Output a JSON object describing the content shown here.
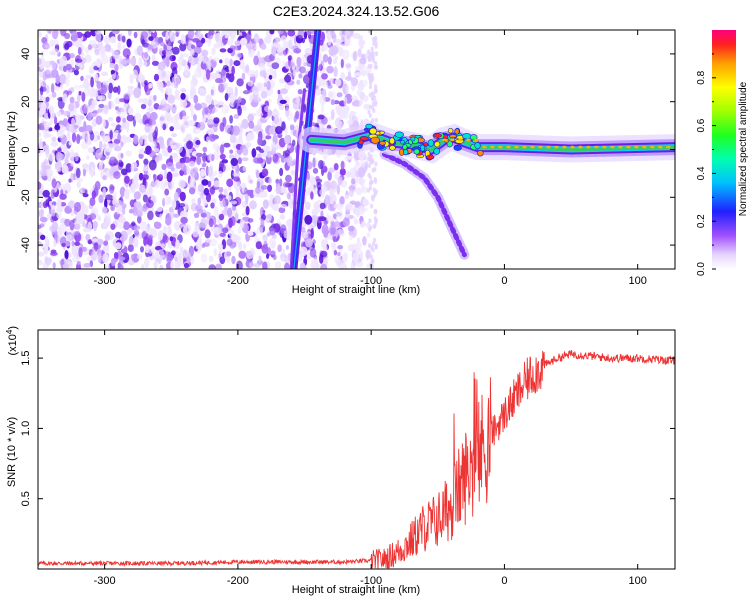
{
  "title": "C2E3.2024.324.13.52.G06",
  "top_plot": {
    "xlabel": "Height of straight line (km)",
    "ylabel": "Frequency (Hz)",
    "colorbar_label": "Normalized spectral amplitude"
  },
  "bottom_plot": {
    "xlabel": "Height of straight line (km)",
    "ylabel": "SNR (10 * v/v)",
    "multiplier": "(x10",
    "multiplier_exp": "4",
    "multiplier_close": ")"
  },
  "colors": {
    "snr_line": "#ee3333",
    "background_speckle": "#8b3cf0",
    "ridge": "#33cc66"
  },
  "chart_data": [
    {
      "type": "heatmap",
      "title": "C2E3.2024.324.13.52.G06",
      "xlabel": "Height of straight line (km)",
      "ylabel": "Frequency (Hz)",
      "xlim": [
        -350,
        128
      ],
      "ylim": [
        -50,
        50
      ],
      "x_ticks": [
        -300,
        -200,
        -100,
        0,
        100
      ],
      "y_ticks": [
        -40,
        -20,
        0,
        20,
        40
      ],
      "x_tick_labels": [
        "-300",
        "-200",
        "-100",
        "0",
        "100"
      ],
      "y_tick_labels": [
        "-40",
        "-20",
        "0",
        "20",
        "40"
      ],
      "colorbar": {
        "label": "Normalized spectral amplitude",
        "range": [
          0,
          1
        ],
        "ticks": [
          0.0,
          0.2,
          0.4,
          0.6,
          0.8
        ],
        "tick_labels": [
          "0.0",
          "0.2",
          "0.4",
          "0.6",
          "0.8"
        ]
      },
      "features": {
        "noise_region_x": [
          -350,
          -102
        ],
        "streak1_points": [
          [
            -158,
            -50
          ],
          [
            -149,
            0
          ],
          [
            -140,
            50
          ]
        ],
        "streak2_points": [
          [
            -160,
            -50
          ],
          [
            -155,
            0
          ],
          [
            -150,
            25
          ]
        ],
        "ridge_points": [
          [
            -145,
            4
          ],
          [
            -120,
            3
          ],
          [
            -100,
            6
          ],
          [
            -85,
            3
          ],
          [
            -70,
            2
          ],
          [
            -55,
            0
          ],
          [
            -45,
            4
          ],
          [
            -38,
            5
          ],
          [
            -30,
            3
          ],
          [
            -20,
            1
          ],
          [
            0,
            1
          ],
          [
            50,
            0
          ],
          [
            128,
            1
          ]
        ],
        "descending_branch": [
          [
            -90,
            -2
          ],
          [
            -75,
            -6
          ],
          [
            -60,
            -12
          ],
          [
            -50,
            -20
          ],
          [
            -40,
            -32
          ],
          [
            -30,
            -44
          ]
        ]
      }
    },
    {
      "type": "line",
      "xlabel": "Height of straight line (km)",
      "ylabel": "SNR (10 * v/v)",
      "xlim": [
        -350,
        128
      ],
      "ylim": [
        0,
        1.7
      ],
      "y_multiplier_exp": 4,
      "x_ticks": [
        -300,
        -200,
        -100,
        0,
        100
      ],
      "y_ticks": [
        0.5,
        1.0,
        1.5
      ],
      "x_tick_labels": [
        "-300",
        "-200",
        "-100",
        "0",
        "100"
      ],
      "y_tick_labels": [
        "0.5",
        "1.0",
        "1.5"
      ],
      "series": [
        {
          "x": [
            -350,
            -300,
            -250,
            -200,
            -150,
            -120,
            -100,
            -90,
            -80,
            -70,
            -60,
            -50,
            -40,
            -30,
            -20,
            -10,
            0,
            10,
            20,
            30,
            40,
            50,
            60,
            80,
            100,
            128
          ],
          "y": [
            0.04,
            0.04,
            0.04,
            0.05,
            0.05,
            0.05,
            0.06,
            0.07,
            0.12,
            0.2,
            0.3,
            0.35,
            0.45,
            0.65,
            0.8,
            0.95,
            1.1,
            1.25,
            1.38,
            1.45,
            1.5,
            1.53,
            1.52,
            1.5,
            1.5,
            1.48
          ]
        }
      ]
    }
  ]
}
